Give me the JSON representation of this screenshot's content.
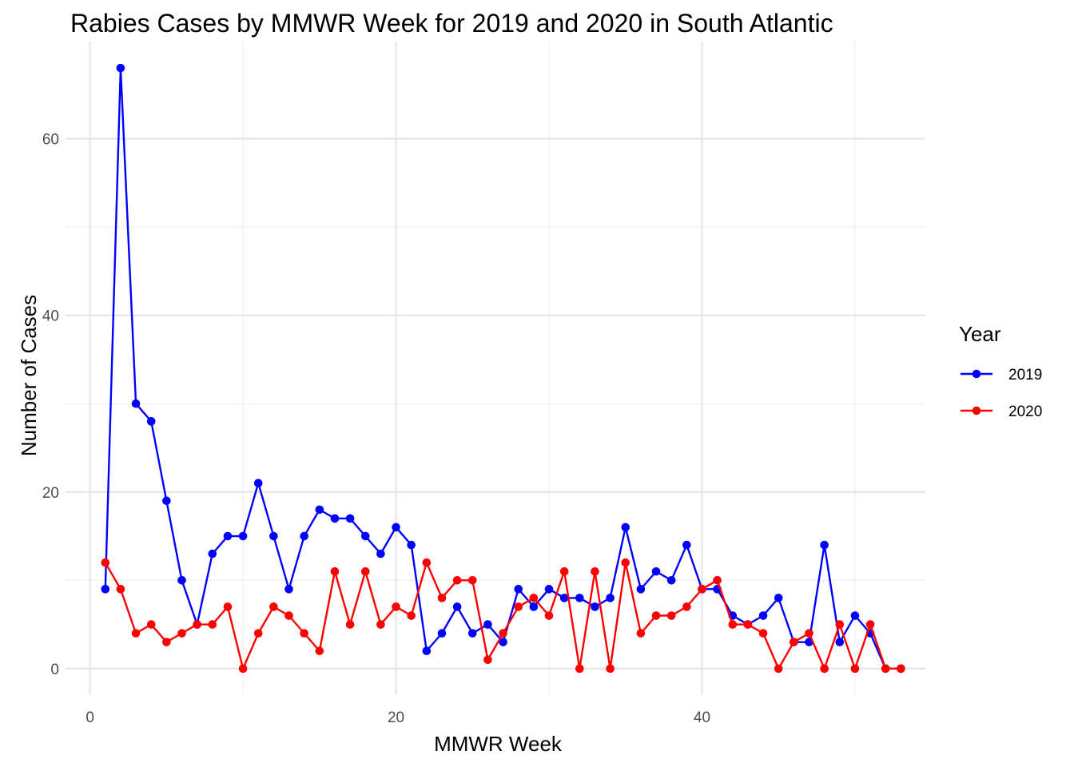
{
  "chart_data": {
    "type": "line",
    "title": "Rabies Cases by MMWR Week for 2019 and 2020 in South Atlantic",
    "xlabel": "MMWR Week",
    "ylabel": "Number of Cases",
    "xlim": [
      -1.6,
      54.6
    ],
    "ylim": [
      -3,
      71
    ],
    "x_ticks": [
      0,
      20,
      40
    ],
    "y_ticks": [
      0,
      20,
      40,
      60
    ],
    "x_minor": [
      10,
      30,
      50
    ],
    "y_minor": [
      10,
      30,
      50
    ],
    "grid": true,
    "legend": {
      "title": "Year",
      "position": "right"
    },
    "series": [
      {
        "name": "2019",
        "color": "#0000ff",
        "x": [
          1,
          2,
          3,
          4,
          5,
          6,
          7,
          8,
          9,
          10,
          11,
          12,
          13,
          14,
          15,
          16,
          17,
          18,
          19,
          20,
          21,
          22,
          23,
          24,
          25,
          26,
          27,
          28,
          29,
          30,
          31,
          32,
          33,
          34,
          35,
          36,
          37,
          38,
          39,
          40,
          41,
          42,
          43,
          44,
          45,
          46,
          47,
          48,
          49,
          50,
          51,
          52,
          53
        ],
        "values": [
          9,
          68,
          30,
          28,
          19,
          10,
          5,
          13,
          15,
          15,
          21,
          15,
          9,
          15,
          18,
          17,
          17,
          15,
          13,
          16,
          14,
          2,
          4,
          7,
          4,
          5,
          3,
          9,
          7,
          9,
          8,
          8,
          7,
          8,
          16,
          9,
          11,
          10,
          14,
          9,
          9,
          6,
          5,
          6,
          8,
          3,
          3,
          14,
          3,
          6,
          4,
          0,
          0
        ]
      },
      {
        "name": "2020",
        "color": "#ff0000",
        "x": [
          1,
          2,
          3,
          4,
          5,
          6,
          7,
          8,
          9,
          10,
          11,
          12,
          13,
          14,
          15,
          16,
          17,
          18,
          19,
          20,
          21,
          22,
          23,
          24,
          25,
          26,
          27,
          28,
          29,
          30,
          31,
          32,
          33,
          34,
          35,
          36,
          37,
          38,
          39,
          40,
          41,
          42,
          43,
          44,
          45,
          46,
          47,
          48,
          49,
          50,
          51,
          52,
          53
        ],
        "values": [
          12,
          9,
          4,
          5,
          3,
          4,
          5,
          5,
          7,
          0,
          4,
          7,
          6,
          4,
          2,
          11,
          5,
          11,
          5,
          7,
          6,
          12,
          8,
          10,
          10,
          1,
          4,
          7,
          8,
          6,
          11,
          0,
          11,
          0,
          12,
          4,
          6,
          6,
          7,
          9,
          10,
          5,
          5,
          4,
          0,
          3,
          4,
          0,
          5,
          0,
          5,
          0,
          0
        ]
      }
    ]
  }
}
